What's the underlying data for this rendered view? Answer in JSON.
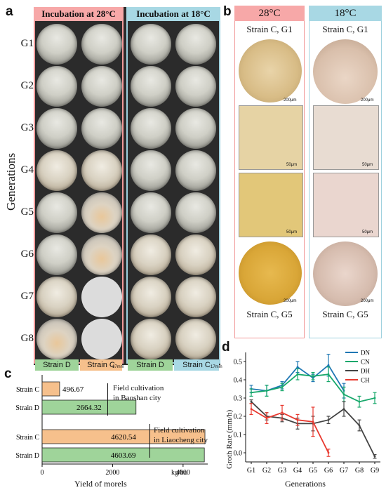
{
  "panel_a": {
    "letter": "a",
    "y_axis_label": "Generations",
    "header_28": "Incubation at 28°C",
    "header_18": "Incubation at 18°C",
    "generations": [
      "G1",
      "G2",
      "G3",
      "G4",
      "G5",
      "G6",
      "G7",
      "G8"
    ],
    "strain_labels": [
      "Strain D",
      "Strain C",
      "Strain D",
      "Strain C"
    ],
    "scale_bar": "17mm",
    "colors": {
      "warm": "#f7a8a8",
      "cool": "#a8d8e4",
      "strainD": "#9fd49a",
      "strainC": "#f6c08c"
    }
  },
  "panel_b": {
    "letter": "b",
    "header_28": "28°C",
    "header_18": "18°C",
    "top_left_caption": "Strain C, G1",
    "top_right_caption": "Strain C, G1",
    "bottom_left_caption": "Strain C, G5",
    "bottom_right_caption": "Strain C, G5",
    "scale_large": "200μm",
    "scale_small": "50μm"
  },
  "panel_c": {
    "letter": "c",
    "xlabel": "Yield of morels",
    "unit": "kg/ha",
    "group1_note": [
      "Field cultivation",
      "in Baoshan city"
    ],
    "group2_note": [
      "Field cultivation",
      "in Liaocheng city"
    ]
  },
  "panel_d": {
    "letter": "d",
    "ylabel": "Groth Rate (mm/h)",
    "xlabel": "Generations"
  },
  "chart_data": [
    {
      "type": "bar",
      "orientation": "horizontal",
      "title": "",
      "xlabel": "Yield of morels",
      "x_unit": "kg/ha",
      "xlim": [
        0,
        4700
      ],
      "xticks": [
        0,
        2000,
        4000
      ],
      "categories": [
        "Strain C",
        "Strain D",
        "Strain C",
        "Strain D"
      ],
      "values": [
        496.67,
        2664.32,
        4620.54,
        4603.69
      ],
      "value_labels": [
        "496.67",
        "2664.32",
        "4620.54",
        "4603.69"
      ],
      "bar_colors": [
        "#f6c08c",
        "#9fd49a",
        "#f6c08c",
        "#9fd49a"
      ],
      "groups": [
        "Field cultivation in Baoshan city",
        "Field cultivation in Liaocheng city"
      ]
    },
    {
      "type": "line",
      "title": "",
      "xlabel": "Generations",
      "ylabel": "Groth Rate (mm/h)",
      "categories": [
        "G1",
        "G2",
        "G3",
        "G4",
        "G5",
        "G6",
        "G7",
        "G8",
        "G9"
      ],
      "ylim": [
        -0.05,
        0.55
      ],
      "yticks": [
        "0.0",
        "0.1",
        "0.2",
        "0.3",
        "0.4",
        "0.5"
      ],
      "ytick_values": [
        0.0,
        0.1,
        0.2,
        0.3,
        0.4,
        0.5
      ],
      "legend_position": "top-right",
      "series": [
        {
          "name": "DN",
          "color": "#1f77b4",
          "values": [
            0.35,
            0.34,
            0.37,
            0.47,
            0.41,
            0.48,
            0.34,
            null,
            null
          ],
          "errors": [
            0.02,
            0.03,
            0.02,
            0.03,
            0.02,
            0.06,
            0.04,
            null,
            null
          ]
        },
        {
          "name": "CN",
          "color": "#17a86b",
          "values": [
            0.33,
            0.34,
            0.36,
            0.43,
            0.42,
            0.43,
            0.32,
            0.28,
            0.3
          ],
          "errors": [
            0.02,
            0.03,
            0.02,
            0.03,
            0.02,
            0.04,
            0.04,
            0.03,
            0.03
          ]
        },
        {
          "name": "DH",
          "color": "#444444",
          "values": [
            0.28,
            0.2,
            0.19,
            0.16,
            0.16,
            0.18,
            0.24,
            0.15,
            -0.02
          ],
          "errors": [
            0.01,
            0.02,
            0.02,
            0.03,
            0.04,
            0.02,
            0.04,
            0.03,
            0.01
          ]
        },
        {
          "name": "CH",
          "color": "#e8392f",
          "values": [
            0.24,
            0.19,
            0.22,
            0.18,
            0.17,
            0.0,
            null,
            null,
            null
          ],
          "errors": [
            0.03,
            0.03,
            0.04,
            0.03,
            0.08,
            0.02,
            null,
            null,
            null
          ]
        }
      ]
    }
  ]
}
